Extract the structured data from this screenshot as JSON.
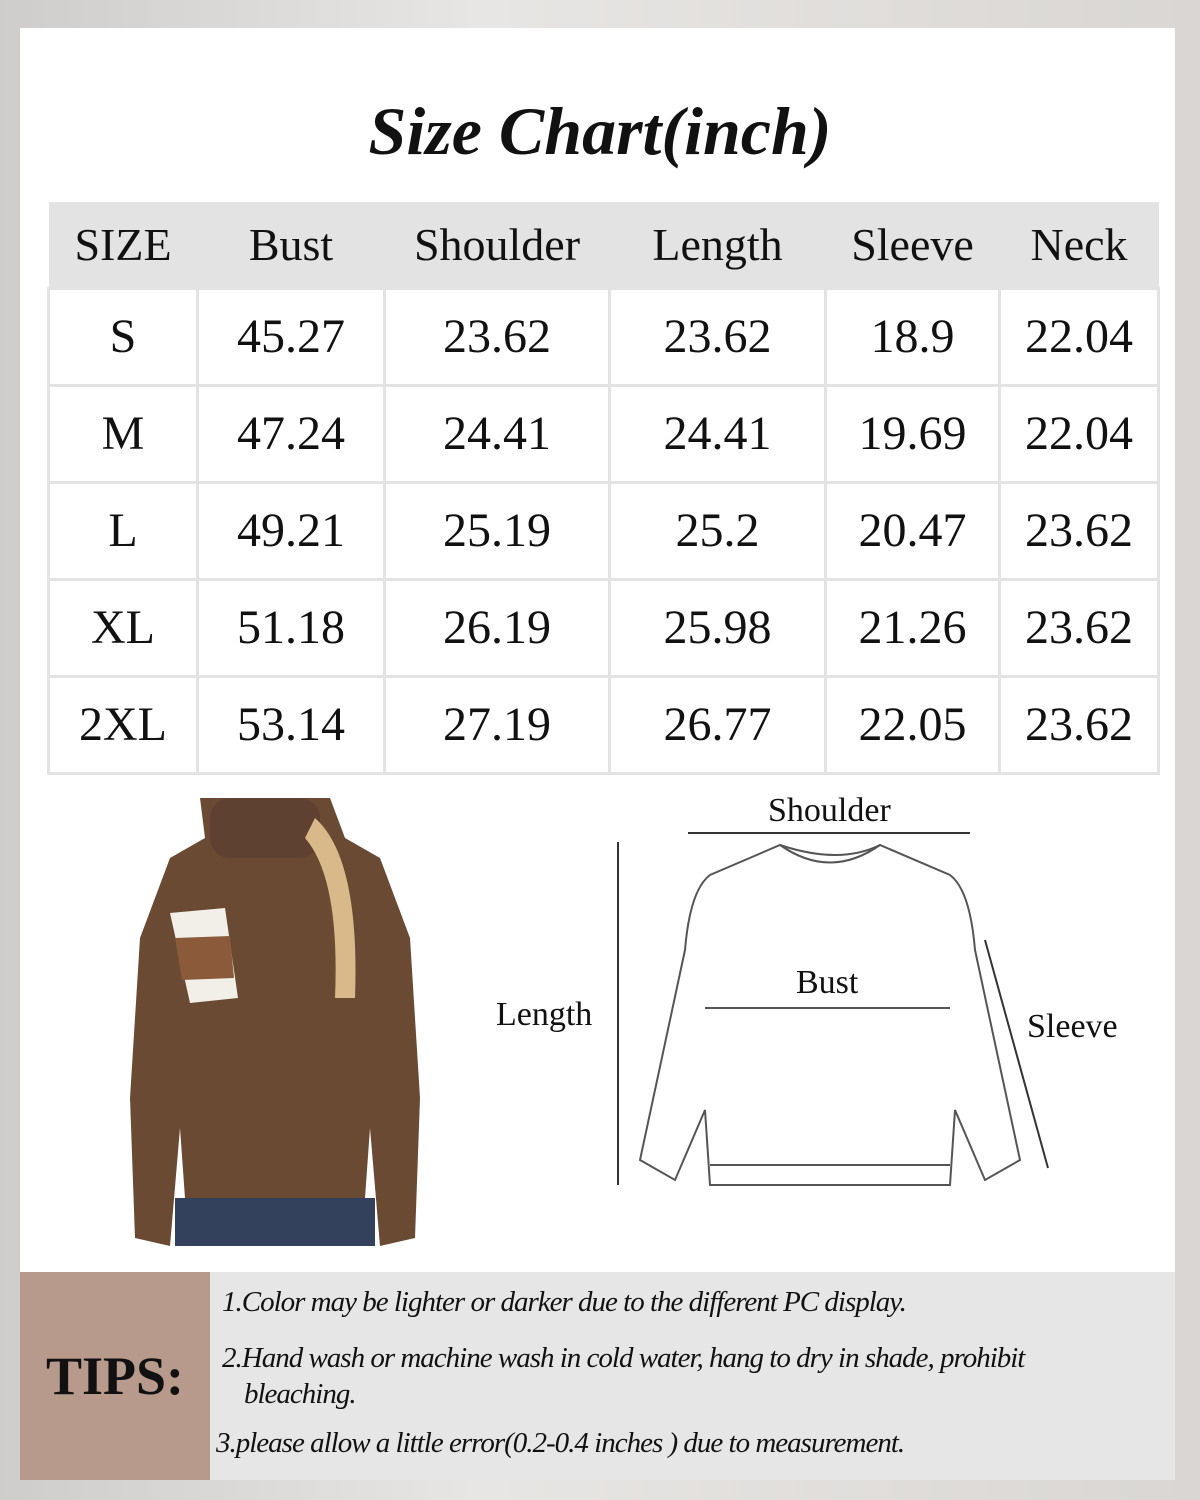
{
  "title": "Size Chart(inch)",
  "table": {
    "headers": [
      "SIZE",
      "Bust",
      "Shoulder",
      "Length",
      "Sleeve",
      "Neck"
    ],
    "rows": [
      [
        "S",
        "45.27",
        "23.62",
        "23.62",
        "18.9",
        "22.04"
      ],
      [
        "M",
        "47.24",
        "24.41",
        "24.41",
        "19.69",
        "22.04"
      ],
      [
        "L",
        "49.21",
        "25.19",
        "25.2",
        "20.47",
        "23.62"
      ],
      [
        "XL",
        "51.18",
        "26.19",
        "25.98",
        "21.26",
        "23.62"
      ],
      [
        "2XL",
        "53.14",
        "27.19",
        "26.77",
        "22.05",
        "23.62"
      ]
    ]
  },
  "diagram": {
    "shoulder": "Shoulder",
    "bust": "Bust",
    "length": "Length",
    "sleeve": "Sleeve"
  },
  "tips": {
    "label": "TIPS:",
    "items": [
      "1.Color may be lighter or darker due to the different PC display.",
      "2.Hand wash or machine wash in cold water, hang to dry in shade, prohibit",
      "bleaching.",
      "3.please allow a little error(0.2-0.4 inches )   due to measurement."
    ]
  },
  "colors": {
    "tips_accent": "#b89a8c",
    "header_bg": "#e3e3e3",
    "sweater": "#6b4a34"
  }
}
